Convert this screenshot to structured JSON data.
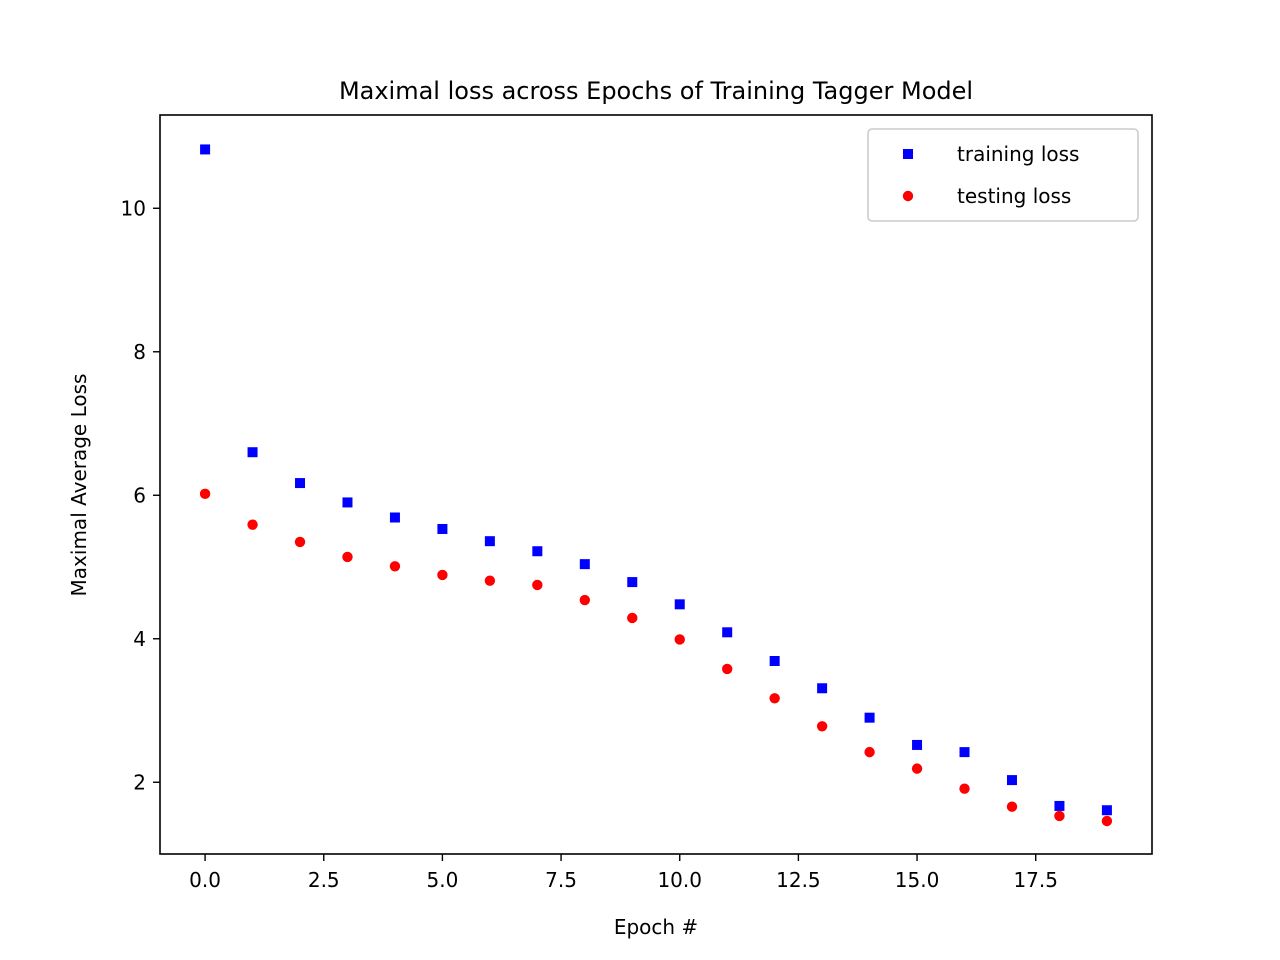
{
  "chart_data": {
    "type": "scatter",
    "title": "Maximal loss across Epochs of Training Tagger Model",
    "xlabel": "Epoch #",
    "ylabel": "Maximal Average Loss",
    "xlim": [
      -0.95,
      19.95
    ],
    "ylim": [
      1.0,
      11.3
    ],
    "x_ticks": [
      0.0,
      2.5,
      5.0,
      7.5,
      10.0,
      12.5,
      15.0,
      17.5
    ],
    "x_tick_labels": [
      "0.0",
      "2.5",
      "5.0",
      "7.5",
      "10.0",
      "12.5",
      "15.0",
      "17.5"
    ],
    "y_ticks": [
      2,
      4,
      6,
      8,
      10
    ],
    "y_tick_labels": [
      "2",
      "4",
      "6",
      "8",
      "10"
    ],
    "grid": false,
    "legend_position": "top-right",
    "x": [
      0,
      1,
      2,
      3,
      4,
      5,
      6,
      7,
      8,
      9,
      10,
      11,
      12,
      13,
      14,
      15,
      16,
      17,
      18,
      19
    ],
    "series": [
      {
        "name": "training loss",
        "marker": "square",
        "color": "#0000ff",
        "values": [
          10.82,
          6.6,
          6.17,
          5.9,
          5.69,
          5.53,
          5.36,
          5.22,
          5.04,
          4.79,
          4.48,
          4.09,
          3.69,
          3.31,
          2.9,
          2.52,
          2.42,
          2.03,
          1.67,
          1.61
        ]
      },
      {
        "name": "testing loss",
        "marker": "circle",
        "color": "#ff0000",
        "values": [
          6.02,
          5.59,
          5.35,
          5.14,
          5.01,
          4.89,
          4.81,
          4.75,
          4.54,
          4.29,
          3.99,
          3.58,
          3.17,
          2.78,
          2.42,
          2.19,
          1.91,
          1.66,
          1.53,
          1.46
        ]
      }
    ]
  }
}
